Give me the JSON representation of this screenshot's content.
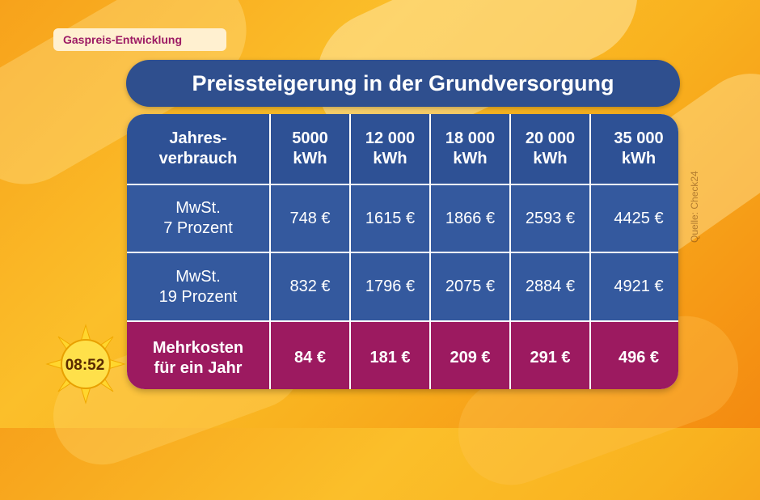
{
  "segment_tag": "Gaspreis-Entwicklung",
  "headline": "Preissteigerung in der Grundversorgung",
  "table": {
    "header": [
      "Jahres-\nverbrauch",
      "5000\nkWh",
      "12 000\nkWh",
      "18 000\nkWh",
      "20 000\nkWh",
      "35 000\nkWh"
    ],
    "rows": [
      [
        "MwSt.\n7 Prozent",
        "748 €",
        "1615 €",
        "1866 €",
        "2593 €",
        "4425 €"
      ],
      [
        "MwSt.\n19 Prozent",
        "832 €",
        "1796 €",
        "2075 €",
        "2884 €",
        "4921 €"
      ],
      [
        "Mehrkosten\nfür ein Jahr",
        "84 €",
        "181 €",
        "209 €",
        "291 €",
        "496 €"
      ]
    ]
  },
  "source": "Quelle: Check24",
  "clock": "08:52",
  "colors": {
    "header_blue": "#2e5195",
    "row_blue": "#34599e",
    "highlight_magenta": "#9c1a60",
    "background_orange": "#f9b21f"
  }
}
